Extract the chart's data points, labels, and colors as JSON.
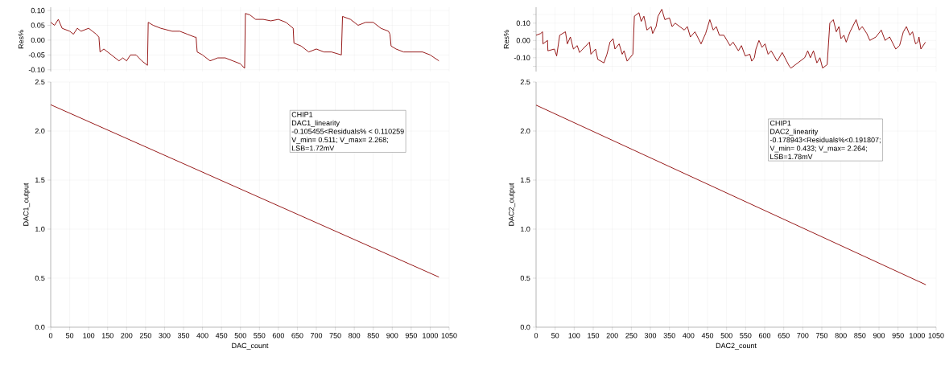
{
  "chart_data": [
    {
      "type": "line",
      "ylabel": "Res%",
      "tick_labels": "y",
      "grid": true,
      "xlim": [
        0,
        1050
      ],
      "ylim": [
        -0.106,
        0.111
      ],
      "xticks": [
        0,
        50,
        100,
        150,
        200,
        250,
        300,
        350,
        400,
        450,
        500,
        550,
        600,
        650,
        700,
        750,
        800,
        850,
        900,
        950,
        1000,
        1050
      ],
      "yticks": [
        {
          "value": -0.1,
          "label": "-0.10"
        },
        {
          "value": -0.05,
          "label": "-0.05"
        },
        {
          "value": 0,
          "label": "0.00"
        },
        {
          "value": 0.05,
          "label": "0.05"
        },
        {
          "value": 0.1,
          "label": "0.10"
        }
      ],
      "series": [
        {
          "color": "#8b0000",
          "x": [
            0,
            10,
            20,
            30,
            50,
            60,
            70,
            80,
            100,
            110,
            120,
            127,
            130,
            140,
            160,
            180,
            190,
            200,
            210,
            225,
            240,
            255,
            257,
            270,
            290,
            320,
            340,
            360,
            380,
            383,
            386,
            400,
            420,
            440,
            460,
            480,
            500,
            511,
            513,
            525,
            540,
            560,
            580,
            600,
            620,
            639,
            641,
            660,
            680,
            700,
            720,
            740,
            766,
            769,
            790,
            810,
            830,
            850,
            870,
            890,
            894,
            897,
            910,
            930,
            960,
            980,
            1000,
            1023
          ],
          "values": [
            0.06,
            0.05,
            0.07,
            0.04,
            0.03,
            0.02,
            0.04,
            0.03,
            0.04,
            0.03,
            0.02,
            0.01,
            -0.04,
            -0.03,
            -0.05,
            -0.07,
            -0.06,
            -0.07,
            -0.05,
            -0.05,
            -0.07,
            -0.085,
            0.06,
            0.05,
            0.04,
            0.03,
            0.03,
            0.02,
            0.01,
            0.01,
            -0.04,
            -0.05,
            -0.07,
            -0.06,
            -0.06,
            -0.07,
            -0.08,
            -0.095,
            0.09,
            0.085,
            0.07,
            0.07,
            0.065,
            0.07,
            0.06,
            0.04,
            -0.01,
            -0.02,
            -0.04,
            -0.03,
            -0.04,
            -0.04,
            -0.05,
            0.08,
            0.07,
            0.05,
            0.06,
            0.06,
            0.04,
            0.03,
            0.02,
            -0.02,
            -0.03,
            -0.04,
            -0.04,
            -0.04,
            -0.05,
            -0.07
          ]
        }
      ]
    },
    {
      "type": "line",
      "ylabel": "Res%",
      "tick_labels": "y",
      "grid": true,
      "xlim": [
        0,
        1050
      ],
      "ylim": [
        -0.18,
        0.192
      ],
      "xticks": [
        0,
        50,
        100,
        150,
        200,
        250,
        300,
        350,
        400,
        450,
        500,
        550,
        600,
        650,
        700,
        750,
        800,
        850,
        900,
        950,
        1000,
        1050
      ],
      "yticks": [
        {
          "value": -0.15,
          "label": null
        },
        {
          "value": -0.1,
          "label": "-0.10"
        },
        {
          "value": -0.05,
          "label": null
        },
        {
          "value": 0,
          "label": "0.00"
        },
        {
          "value": 0.05,
          "label": null
        },
        {
          "value": 0.1,
          "label": "0.10"
        },
        {
          "value": 0.15,
          "label": null
        }
      ],
      "series": [
        {
          "color": "#8b0000",
          "x": [
            0,
            12,
            17,
            18,
            30,
            31,
            48,
            54,
            62,
            77,
            82,
            90,
            98,
            108,
            114,
            140,
            144,
            156,
            162,
            178,
            186,
            194,
            202,
            207,
            218,
            226,
            231,
            239,
            254,
            258,
            270,
            276,
            283,
            291,
            302,
            306,
            315,
            320,
            330,
            338,
            350,
            357,
            365,
            389,
            397,
            405,
            417,
            433,
            445,
            456,
            465,
            473,
            481,
            493,
            509,
            517,
            531,
            539,
            549,
            561,
            566,
            573,
            577,
            585,
            593,
            601,
            609,
            617,
            633,
            646,
            653,
            665,
            669,
            705,
            713,
            720,
            728,
            737,
            745,
            752,
            764,
            771,
            780,
            788,
            795,
            800,
            808,
            814,
            824,
            840,
            848,
            856,
            868,
            876,
            892,
            906,
            916,
            928,
            944,
            954,
            964,
            972,
            981,
            988,
            996,
            1002,
            1005,
            1010,
            1016,
            1022
          ],
          "values": [
            0.03,
            0.04,
            0.05,
            -0.02,
            0.0,
            -0.06,
            -0.05,
            -0.09,
            0.03,
            0.05,
            -0.02,
            0.02,
            -0.05,
            -0.03,
            -0.07,
            -0.01,
            -0.08,
            -0.05,
            -0.11,
            -0.13,
            -0.08,
            -0.01,
            0.01,
            -0.05,
            -0.02,
            -0.08,
            -0.06,
            -0.12,
            -0.08,
            0.14,
            0.16,
            0.11,
            0.14,
            0.06,
            0.08,
            0.04,
            0.08,
            0.14,
            0.18,
            0.12,
            0.13,
            0.08,
            0.1,
            0.06,
            0.08,
            0.02,
            0.05,
            -0.02,
            0.04,
            0.12,
            0.06,
            0.08,
            0.03,
            0.03,
            -0.03,
            -0.01,
            -0.06,
            -0.03,
            -0.09,
            -0.08,
            -0.12,
            -0.1,
            -0.05,
            0.0,
            -0.04,
            -0.02,
            -0.08,
            -0.06,
            -0.12,
            -0.07,
            -0.1,
            -0.15,
            -0.16,
            -0.1,
            -0.06,
            -0.1,
            -0.06,
            -0.13,
            -0.1,
            -0.16,
            -0.14,
            0.1,
            0.12,
            0.05,
            0.08,
            0.01,
            0.03,
            -0.01,
            0.05,
            0.12,
            0.06,
            0.08,
            0.04,
            0.0,
            0.02,
            0.06,
            0.0,
            0.02,
            -0.05,
            -0.03,
            0.05,
            0.08,
            0.03,
            0.05,
            -0.02,
            -0.01,
            0.02,
            -0.05,
            -0.03,
            -0.01
          ]
        }
      ]
    },
    {
      "type": "line",
      "ylabel": "DAC1_output",
      "xlabel": "DAC_count",
      "grid": true,
      "xlim": [
        0,
        1050
      ],
      "ylim": [
        0,
        2.5
      ],
      "xticks": [
        0,
        50,
        100,
        150,
        200,
        250,
        300,
        350,
        400,
        450,
        500,
        550,
        600,
        650,
        700,
        750,
        800,
        850,
        900,
        950,
        1000,
        1050
      ],
      "yticks": [
        {
          "value": 0,
          "label": "0.0"
        },
        {
          "value": 0.5,
          "label": "0.5"
        },
        {
          "value": 1,
          "label": "1.0"
        },
        {
          "value": 1.5,
          "label": "1.5"
        },
        {
          "value": 2,
          "label": "2.0"
        },
        {
          "value": 2.5,
          "label": "2.5"
        }
      ],
      "annotations": [
        "CHIP1",
        "DAC1_linearity",
        "-0.105455<Residuals% < 0.110259",
        "V_min= 0.511; V_max= 2.268;",
        "LSB=1.72mV"
      ],
      "series": [
        {
          "color": "#8b0000",
          "x": [
            0,
            1023
          ],
          "values": [
            2.268,
            0.511
          ]
        }
      ]
    },
    {
      "type": "line",
      "ylabel": "DAC2_output",
      "xlabel": "DAC2_count",
      "grid": true,
      "xlim": [
        0,
        1050
      ],
      "ylim": [
        0,
        2.5
      ],
      "xticks": [
        0,
        50,
        100,
        150,
        200,
        250,
        300,
        350,
        400,
        450,
        500,
        550,
        600,
        650,
        700,
        750,
        800,
        850,
        900,
        950,
        1000,
        1050
      ],
      "yticks": [
        {
          "value": 0,
          "label": "0.0"
        },
        {
          "value": 0.5,
          "label": "0.5"
        },
        {
          "value": 1,
          "label": "1.0"
        },
        {
          "value": 1.5,
          "label": "1.5"
        },
        {
          "value": 2,
          "label": "2.0"
        },
        {
          "value": 2.5,
          "label": "2.5"
        }
      ],
      "annotations": [
        "CHIP1",
        "DAC2_linearity",
        "-0.178943<Residuals%<0.191807;",
        "V_min= 0.433; V_max= 2.264;",
        "LSB=1.78mV"
      ],
      "series": [
        {
          "color": "#8b0000",
          "x": [
            0,
            1023
          ],
          "values": [
            2.264,
            0.433
          ]
        }
      ]
    }
  ]
}
